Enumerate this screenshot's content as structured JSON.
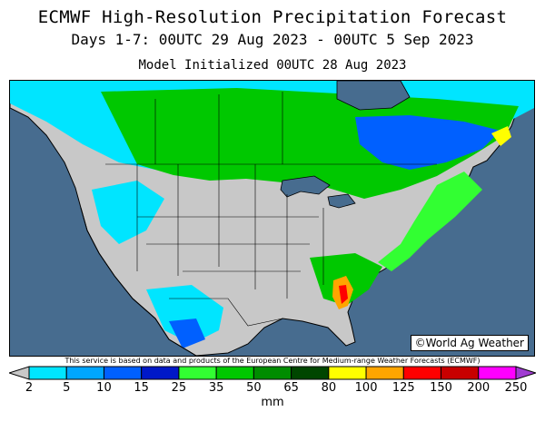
{
  "title_line1": "ECMWF High-Resolution Precipitation Forecast",
  "title_line2": "Days 1-7: 00UTC 29 Aug 2023 - 00UTC 5 Sep 2023",
  "title_line3": "Model Initialized 00UTC 28 Aug 2023",
  "credit": "©World Ag Weather",
  "disclaimer": "This service is based on data and products of the European Centre for Medium-range Weather Forecasts (ECMWF)",
  "legend": {
    "units": "mm",
    "ticks": [
      "2",
      "5",
      "10",
      "15",
      "25",
      "35",
      "50",
      "65",
      "80",
      "100",
      "125",
      "150",
      "200",
      "250"
    ],
    "colors": [
      "#c8c8c8",
      "#00e5ff",
      "#00a6ff",
      "#0060ff",
      "#0018c8",
      "#32ff32",
      "#00c800",
      "#008c00",
      "#004600",
      "#ffff00",
      "#ffa500",
      "#ff0000",
      "#c80000",
      "#ff00ff",
      "#a03cd2"
    ]
  },
  "map_colors": {
    "ocean": "#476c8f",
    "land_light": "#c8c8c8",
    "border": "#000000"
  }
}
